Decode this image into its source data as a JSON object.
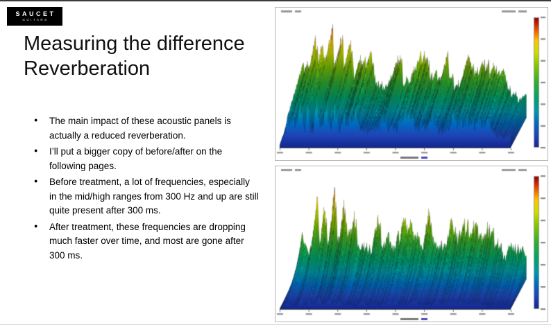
{
  "page": {
    "background": "#ffffff",
    "top_border": "#3a3a3a"
  },
  "logo": {
    "line1": "SAUCET",
    "line2": "GUITARS",
    "bg": "#000000",
    "fg": "#ffffff"
  },
  "title": {
    "line1": "Measuring the difference",
    "line2": "Reverberation"
  },
  "content": {
    "bullet_marker": "●",
    "bullets": [
      "The main impact of these acoustic panels is actually a reduced reverberation.",
      "I’ll put a bigger copy of before/after on the following pages.",
      "Before treatment, a lot of frequencies, especially in the mid/high ranges from 300 Hz and up are still quite present after 300 ms.",
      "After treatment, these frequencies are dropping much faster over time, and most are gone after 300 ms."
    ]
  },
  "chart_data": [
    {
      "type": "area",
      "name": "waterfall-before-treatment",
      "description": "3D waterfall reverberation decay plot, before acoustic treatment: frequencies remain present over time",
      "legend_position": "right",
      "seed": 7,
      "decay": 0.988,
      "base": 0.52,
      "wave1": 0.1,
      "wave2": 0.07,
      "wave3": 0.05,
      "ph1": 1.3,
      "ph2": 4.1,
      "ph3": 2.2,
      "peaks": [
        [
          0.09,
          1.02,
          0.012
        ],
        [
          0.12,
          0.93,
          0.01
        ],
        [
          0.16,
          1.05,
          0.011
        ],
        [
          0.2,
          0.96,
          0.012
        ],
        [
          0.24,
          0.84,
          0.013
        ],
        [
          0.33,
          0.78,
          0.02
        ],
        [
          0.45,
          0.74,
          0.022
        ],
        [
          0.55,
          0.8,
          0.02
        ],
        [
          0.66,
          0.76,
          0.022
        ],
        [
          0.75,
          0.74,
          0.02
        ],
        [
          0.83,
          0.68,
          0.018
        ]
      ]
    },
    {
      "type": "area",
      "name": "waterfall-after-treatment",
      "description": "3D waterfall reverberation decay plot, after acoustic treatment: frequencies decay quickly over time",
      "legend_position": "right",
      "seed": 23,
      "decay": 0.958,
      "base": 0.5,
      "wave1": 0.1,
      "wave2": 0.07,
      "wave3": 0.05,
      "ph1": 2.9,
      "ph2": 0.7,
      "ph3": 5.1,
      "peaks": [
        [
          0.09,
          1.0,
          0.012
        ],
        [
          0.13,
          0.9,
          0.011
        ],
        [
          0.17,
          1.04,
          0.011
        ],
        [
          0.21,
          0.9,
          0.012
        ],
        [
          0.26,
          0.8,
          0.013
        ],
        [
          0.36,
          0.74,
          0.02
        ],
        [
          0.48,
          0.72,
          0.022
        ],
        [
          0.58,
          0.76,
          0.02
        ],
        [
          0.68,
          0.72,
          0.02
        ],
        [
          0.78,
          0.7,
          0.02
        ],
        [
          0.85,
          0.62,
          0.018
        ]
      ]
    }
  ],
  "colormap": [
    [
      0.0,
      "#8f0000"
    ],
    [
      0.05,
      "#c42200"
    ],
    [
      0.11,
      "#f26500"
    ],
    [
      0.18,
      "#fdc500"
    ],
    [
      0.27,
      "#cfdd00"
    ],
    [
      0.38,
      "#7ec400"
    ],
    [
      0.5,
      "#2fae2f"
    ],
    [
      0.62,
      "#00a26b"
    ],
    [
      0.72,
      "#0098a8"
    ],
    [
      0.82,
      "#0069c0"
    ],
    [
      0.9,
      "#1e47b8"
    ],
    [
      1.0,
      "#14268f"
    ]
  ]
}
